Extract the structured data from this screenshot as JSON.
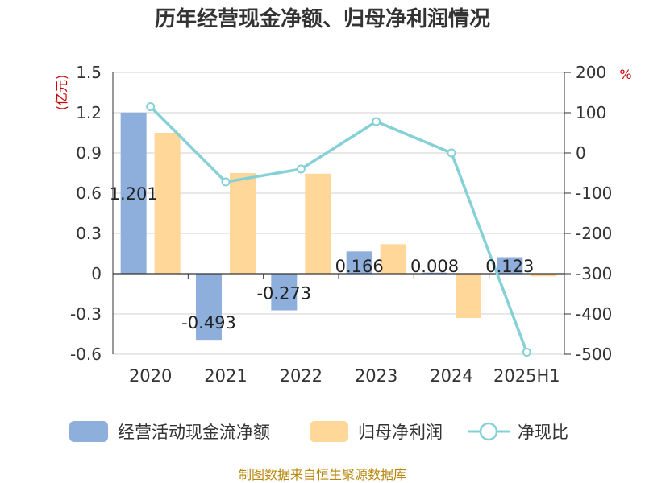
{
  "chart_data": {
    "type": "bar",
    "title": "历年经营现金净额、归母净利润情况",
    "categories": [
      "2020",
      "2021",
      "2022",
      "2023",
      "2024",
      "2025H1"
    ],
    "left_axis": {
      "unit": "(亿元)",
      "ylim": [
        -0.6,
        1.5
      ],
      "ticks": [
        1.5,
        1.2,
        0.9,
        0.6,
        0.3,
        0,
        -0.3,
        -0.6
      ],
      "tick_labels": [
        "1.5",
        "1.2",
        "0.9",
        "0.6",
        "0.3",
        "0",
        "-0.3",
        "-0.6"
      ]
    },
    "right_axis": {
      "unit": "%",
      "ylim": [
        -500,
        200
      ],
      "ticks": [
        200,
        100,
        0,
        -100,
        -200,
        -300,
        -400,
        -500
      ],
      "tick_labels": [
        "200",
        "100",
        "0",
        "-100",
        "-200",
        "-300",
        "-400",
        "-500"
      ]
    },
    "series": [
      {
        "name": "经营活动现金流净额",
        "type": "bar",
        "axis": "left",
        "color": "#8eaedc",
        "values": [
          1.201,
          -0.493,
          -0.273,
          0.166,
          0.008,
          0.123
        ],
        "labels": [
          "1.201",
          "-0.493",
          "-0.273",
          "0.166",
          "0.008",
          "0.123"
        ]
      },
      {
        "name": "归母净利润",
        "type": "bar",
        "axis": "left",
        "color": "#ffd799",
        "values": [
          1.05,
          0.75,
          0.745,
          0.22,
          -0.33,
          -0.02
        ]
      },
      {
        "name": "净现比",
        "type": "line",
        "axis": "right",
        "color": "#85d1d6",
        "values": [
          115,
          -72,
          -40,
          78,
          0,
          -495
        ]
      }
    ],
    "grid": true,
    "legend_position": "bottom"
  },
  "source_text": "制图数据来自恒生聚源数据库"
}
